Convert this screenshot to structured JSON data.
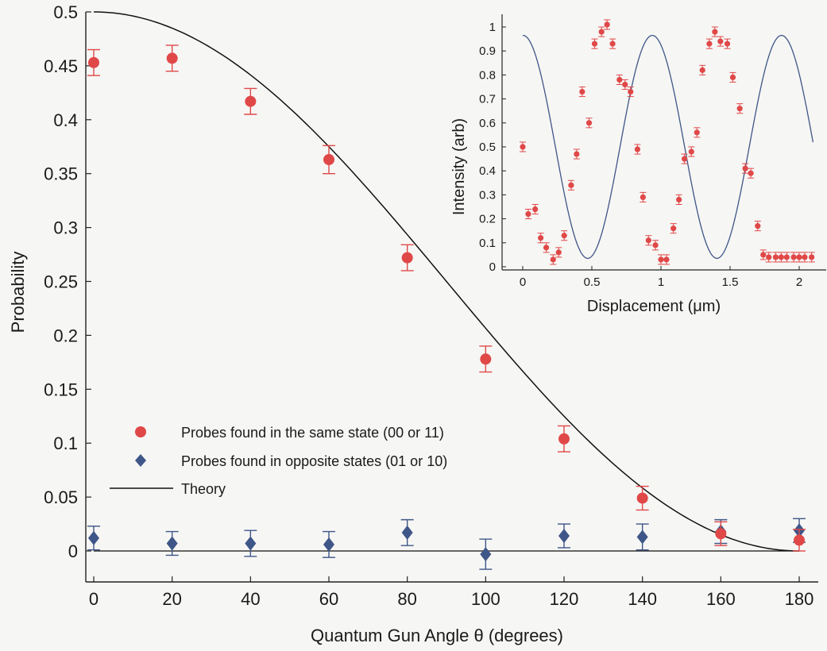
{
  "chart_data": [
    {
      "type": "scatter",
      "xlabel": "Quantum Gun Angle θ (degrees)",
      "ylabel": "Probability",
      "xlim": [
        -2,
        184
      ],
      "ylim": [
        -0.025,
        0.5
      ],
      "xticks": [
        "0",
        "20",
        "40",
        "60",
        "80",
        "100",
        "120",
        "140",
        "160",
        "180"
      ],
      "yticks": [
        "0",
        "0.05",
        "0.1",
        "0.15",
        "0.2",
        "0.25",
        "0.3",
        "0.35",
        "0.4",
        "0.45",
        "0.5"
      ],
      "grid": false,
      "legend_position": "lower-left",
      "series": [
        {
          "name": "Probes found in the same state (00 or 11)",
          "marker": "circle",
          "color": "#e04848",
          "x": [
            0,
            20,
            40,
            60,
            80,
            100,
            120,
            140,
            160,
            180
          ],
          "y": [
            0.453,
            0.457,
            0.417,
            0.363,
            0.272,
            0.178,
            0.104,
            0.049,
            0.016,
            0.01
          ],
          "err": [
            0.012,
            0.012,
            0.012,
            0.013,
            0.012,
            0.012,
            0.012,
            0.011,
            0.011,
            0.01
          ]
        },
        {
          "name": "Probes found in opposite states (01 or 10)",
          "marker": "diamond",
          "color": "#3f5688",
          "x": [
            0,
            20,
            40,
            60,
            80,
            100,
            120,
            140,
            160,
            180
          ],
          "y": [
            0.012,
            0.007,
            0.007,
            0.006,
            0.017,
            -0.003,
            0.014,
            0.013,
            0.018,
            0.019
          ],
          "err": [
            0.011,
            0.011,
            0.012,
            0.012,
            0.012,
            0.014,
            0.011,
            0.012,
            0.011,
            0.011
          ]
        },
        {
          "name": "Theory",
          "type": "line",
          "color": "#111111",
          "function": "0.5*cos^2(θ/2)",
          "baseline_y": 0
        }
      ]
    },
    {
      "type": "scatter",
      "xlabel": "Displacement (μm)",
      "ylabel": "Intensity (arb)",
      "xlim": [
        -0.05,
        2.15
      ],
      "ylim": [
        0,
        1.05
      ],
      "xticks": [
        "0",
        "0.5",
        "1",
        "1.5",
        "2"
      ],
      "yticks": [
        "0",
        "0.1",
        "0.2",
        "0.3",
        "0.4",
        "0.5",
        "0.6",
        "0.7",
        "0.8",
        "0.9",
        "1"
      ],
      "grid": false,
      "series": [
        {
          "name": "",
          "marker": "circle",
          "color": "#e04848",
          "x": [
            0.0,
            0.04,
            0.09,
            0.13,
            0.17,
            0.22,
            0.26,
            0.3,
            0.35,
            0.39,
            0.43,
            0.48,
            0.52,
            0.57,
            0.61,
            0.65,
            0.7,
            0.74,
            0.78,
            0.83,
            0.87,
            0.91,
            0.96,
            1.0,
            1.04,
            1.09,
            1.13,
            1.17,
            1.22,
            1.26,
            1.3,
            1.35,
            1.39,
            1.43,
            1.48,
            1.52,
            1.57,
            1.61,
            1.65,
            1.7,
            1.74,
            1.78,
            1.83,
            1.87,
            1.91,
            1.96,
            2.0,
            2.04,
            2.09
          ],
          "y": [
            0.5,
            0.22,
            0.24,
            0.12,
            0.08,
            0.03,
            0.06,
            0.13,
            0.34,
            0.47,
            0.73,
            0.6,
            0.93,
            0.98,
            1.01,
            0.93,
            0.78,
            0.76,
            0.73,
            0.49,
            0.29,
            0.11,
            0.09,
            0.03,
            0.03,
            0.16,
            0.28,
            0.45,
            0.48,
            0.56,
            0.82,
            0.93,
            0.98,
            0.94,
            0.93,
            0.79,
            0.66,
            0.41,
            0.39,
            0.17,
            0.05,
            0.04,
            0.04,
            0.04,
            0.04,
            0.04,
            0.04,
            0.04,
            0.04
          ],
          "err": [
            0.02,
            0.02,
            0.02,
            0.02,
            0.02,
            0.02,
            0.02,
            0.02,
            0.02,
            0.02,
            0.02,
            0.02,
            0.02,
            0.02,
            0.02,
            0.02,
            0.02,
            0.02,
            0.02,
            0.02,
            0.02,
            0.02,
            0.02,
            0.02,
            0.02,
            0.02,
            0.02,
            0.02,
            0.02,
            0.02,
            0.02,
            0.02,
            0.02,
            0.02,
            0.02,
            0.02,
            0.02,
            0.02,
            0.02,
            0.02,
            0.02,
            0.02,
            0.02,
            0.02,
            0.02,
            0.02,
            0.02,
            0.02,
            0.02
          ]
        },
        {
          "name": "",
          "type": "line",
          "color": "#3f5688",
          "function": "0.5 + 0.465*cos(2π(x)/0.935)",
          "phase_shift": 0
        }
      ]
    }
  ]
}
